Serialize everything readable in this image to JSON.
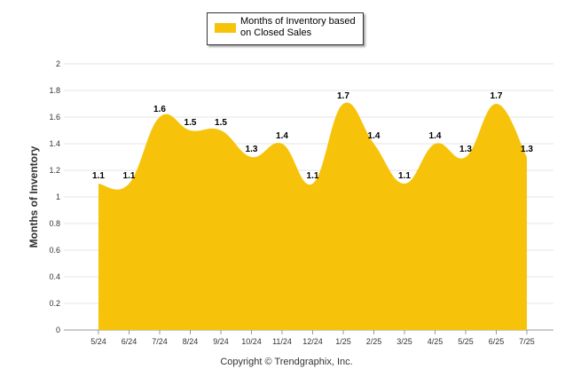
{
  "chart_data": {
    "type": "area",
    "categories": [
      "5/24",
      "6/24",
      "7/24",
      "8/24",
      "9/24",
      "10/24",
      "11/24",
      "12/24",
      "1/25",
      "2/25",
      "3/25",
      "4/25",
      "5/25",
      "6/25",
      "7/25"
    ],
    "series": [
      {
        "name": "Months of Inventory based on Closed Sales",
        "values": [
          1.1,
          1.1,
          1.6,
          1.5,
          1.5,
          1.3,
          1.4,
          1.1,
          1.7,
          1.4,
          1.1,
          1.4,
          1.3,
          1.7,
          1.3
        ]
      }
    ],
    "ylabel": "Months of Inventory",
    "ylim": [
      0,
      2
    ],
    "yticks": [
      0,
      0.2,
      0.4,
      0.6,
      0.8,
      1,
      1.2,
      1.4,
      1.6,
      1.8,
      2
    ],
    "grid": true,
    "legend": "top-center",
    "color": "#F7C30A"
  },
  "footer": {
    "copyright": "Copyright © Trendgraphix, Inc."
  }
}
